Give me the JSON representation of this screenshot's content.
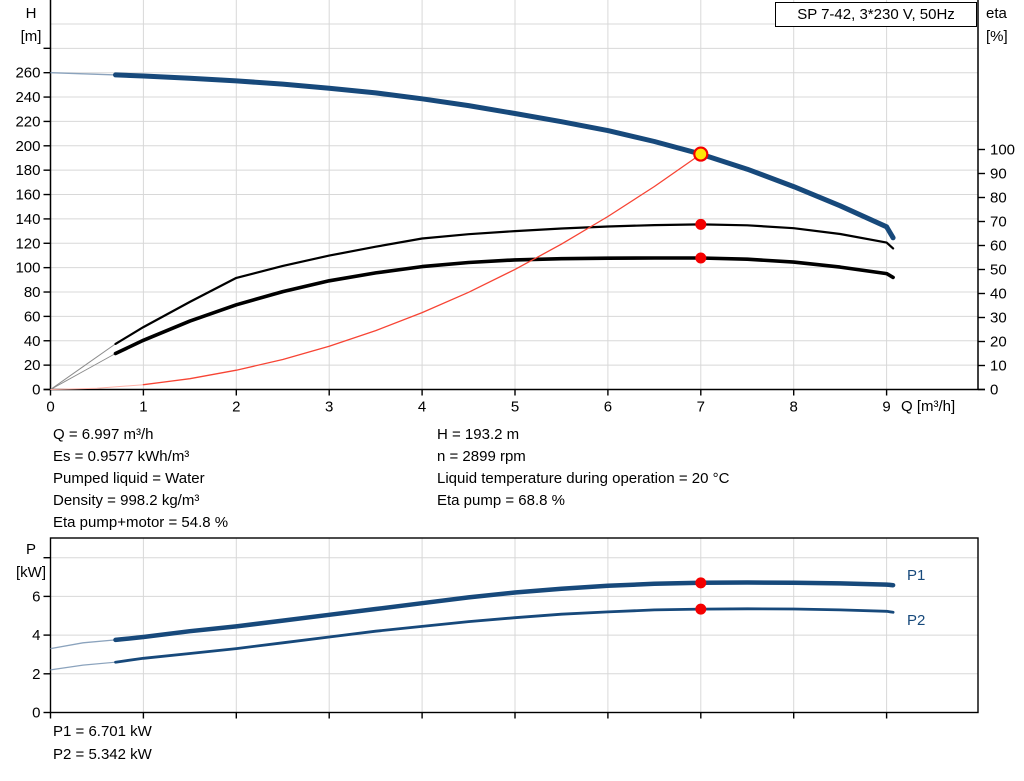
{
  "axis_labels": {
    "h_line1": "H",
    "h_line2": "[m]",
    "eta_line1": "eta",
    "eta_line2": "[%]",
    "p_line1": "P",
    "p_line2": "[kW]"
  },
  "annotations": {
    "left": [
      "Q = 6.997 m³/h",
      "Es = 0.9577 kWh/m³",
      "Pumped liquid = Water",
      "Density = 998.2 kg/m³",
      "Eta pump+motor = 54.8 %"
    ],
    "right": [
      "H = 193.2 m",
      "n = 2899 rpm",
      "Liquid temperature during operation = 20 °C",
      "Eta pump = 68.8 %"
    ],
    "power": [
      "P1 = 6.701 kW",
      "P2 = 5.342 kW"
    ]
  },
  "colors": {
    "curve_blue": "#17497b",
    "curve_blue_thin": "#8ba3bd",
    "curve_black": "#000000",
    "curve_black_thin": "#8c8c8c",
    "curve_red": "#f74434",
    "curve_red_thin": "#ffb3aa",
    "marker_red": "#f40000",
    "marker_yellow": "#ffe508",
    "grid": "#d8d8d8",
    "axis": "#000000",
    "label_blue": "#17497b"
  },
  "chart_data": [
    {
      "type": "line",
      "id": "qh-eta-chart",
      "title": "SP 7-42, 3*230 V, 50Hz",
      "xlabel": "Q [m³/h]",
      "ylabel_left": "H [m]",
      "ylabel_right": "eta [%]",
      "grid": true,
      "xlim": [
        0,
        9.98
      ],
      "ylim_left": [
        0,
        320
      ],
      "ylim_right": [
        0,
        162
      ],
      "x_ticks": [
        0,
        1,
        2,
        3,
        4,
        5,
        6,
        7,
        8,
        9
      ],
      "y_left_ticks": [
        0,
        20,
        40,
        60,
        80,
        100,
        120,
        140,
        160,
        180,
        200,
        220,
        240,
        260
      ],
      "y_left_unlabeled_ticks": [
        280
      ],
      "y_left_grid": [
        20,
        40,
        60,
        80,
        100,
        120,
        140,
        160,
        180,
        200,
        220,
        240,
        260,
        280,
        300
      ],
      "y_right_ticks": [
        0,
        10,
        20,
        30,
        40,
        50,
        60,
        70,
        80,
        90,
        100
      ],
      "series": [
        {
          "name": "eta-pump-curve",
          "axis": "right",
          "color": "#000000",
          "width": 2.2,
          "thin_until": 0.7,
          "thin_color": "#8c8c8c",
          "thin_width": 1,
          "points": [
            [
              0,
              0
            ],
            [
              0.35,
              9.5
            ],
            [
              0.7,
              19
            ],
            [
              1,
              26
            ],
            [
              1.5,
              36.5
            ],
            [
              2,
              46.5
            ],
            [
              2.5,
              51.5
            ],
            [
              3,
              55.8
            ],
            [
              3.5,
              59.5
            ],
            [
              4,
              62.9
            ],
            [
              4.5,
              64.7
            ],
            [
              5,
              66
            ],
            [
              5.5,
              67.1
            ],
            [
              6,
              67.9
            ],
            [
              6.5,
              68.5
            ],
            [
              7,
              68.8
            ],
            [
              7.5,
              68.4
            ],
            [
              8,
              67.2
            ],
            [
              8.5,
              64.8
            ],
            [
              9,
              61.2
            ],
            [
              9.07,
              58.8
            ]
          ]
        },
        {
          "name": "eta-pump-motor-curve",
          "axis": "right",
          "color": "#000000",
          "width": 3.6,
          "thin_until": 0.7,
          "thin_color": "#8c8c8c",
          "thin_width": 1,
          "points": [
            [
              0,
              0
            ],
            [
              0.35,
              7.5
            ],
            [
              0.7,
              15
            ],
            [
              1,
              20.5
            ],
            [
              1.5,
              28.5
            ],
            [
              2,
              35.3
            ],
            [
              2.5,
              40.8
            ],
            [
              3,
              45.3
            ],
            [
              3.5,
              48.6
            ],
            [
              4,
              51.2
            ],
            [
              4.5,
              52.9
            ],
            [
              5,
              54
            ],
            [
              5.5,
              54.5
            ],
            [
              6,
              54.7
            ],
            [
              6.5,
              54.8
            ],
            [
              7,
              54.8
            ],
            [
              7.5,
              54.3
            ],
            [
              8,
              53.1
            ],
            [
              8.5,
              51
            ],
            [
              9,
              48.3
            ],
            [
              9.07,
              46.7
            ]
          ]
        },
        {
          "name": "system-curve",
          "axis": "left",
          "color": "#f74434",
          "width": 1.3,
          "thin_until": 1,
          "thin_color": "#ffb3aa",
          "thin_width": 1,
          "points": [
            [
              0,
              0
            ],
            [
              0.5,
              1
            ],
            [
              1,
              3.9
            ],
            [
              1.5,
              8.9
            ],
            [
              2,
              15.8
            ],
            [
              2.5,
              24.6
            ],
            [
              3,
              35.5
            ],
            [
              3.5,
              48.3
            ],
            [
              4,
              63.1
            ],
            [
              4.5,
              79.8
            ],
            [
              5,
              98.6
            ],
            [
              5.5,
              119.3
            ],
            [
              6,
              142
            ],
            [
              6.5,
              166.6
            ],
            [
              7,
              193.2
            ]
          ]
        },
        {
          "name": "head-curve",
          "axis": "left",
          "color": "#17497b",
          "width": 5,
          "thin_until": 0.7,
          "thin_color": "#8ba3bd",
          "thin_width": 1.4,
          "points": [
            [
              0,
              260
            ],
            [
              0.35,
              259.1
            ],
            [
              0.7,
              258.2
            ],
            [
              1,
              257.3
            ],
            [
              1.5,
              255.5
            ],
            [
              2,
              253.3
            ],
            [
              2.5,
              250.6
            ],
            [
              3,
              247.3
            ],
            [
              3.5,
              243.4
            ],
            [
              4,
              238.6
            ],
            [
              4.5,
              233
            ],
            [
              5,
              226.5
            ],
            [
              5.5,
              219.8
            ],
            [
              6,
              212.5
            ],
            [
              6.5,
              203.5
            ],
            [
              7,
              193.2
            ],
            [
              7.5,
              180.8
            ],
            [
              8,
              166.5
            ],
            [
              8.5,
              150.8
            ],
            [
              9,
              133.5
            ],
            [
              9.07,
              124.5
            ]
          ]
        }
      ],
      "markers": [
        {
          "name": "duty-point-qh",
          "q": 7,
          "value": 193.2,
          "axis": "left",
          "r": 6.5,
          "fill": "#ffe508",
          "stroke": "#f40000",
          "stroke_width": 2.2
        },
        {
          "name": "duty-point-eta-pump",
          "q": 7,
          "value": 68.8,
          "axis": "right",
          "r": 5.5,
          "fill": "#f40000"
        },
        {
          "name": "duty-point-eta-pump-motor",
          "q": 7,
          "value": 54.8,
          "axis": "right",
          "r": 5.5,
          "fill": "#f40000"
        }
      ]
    },
    {
      "type": "line",
      "id": "power-chart",
      "ylabel": "P [kW]",
      "grid": true,
      "xlim": [
        0,
        9.98
      ],
      "ylim": [
        0,
        9
      ],
      "x_ticks": [
        0,
        1,
        2,
        3,
        4,
        5,
        6,
        7,
        8,
        9
      ],
      "y_ticks": [
        0,
        2,
        4,
        6
      ],
      "y_unlabeled_ticks": [
        8
      ],
      "y_grid": [
        2,
        4,
        6,
        8
      ],
      "series": [
        {
          "name": "p1-curve",
          "label": "P1",
          "axis": "left",
          "color": "#17497b",
          "width": 4.5,
          "thin_until": 0.7,
          "thin_color": "#8ba3bd",
          "thin_width": 1.3,
          "points": [
            [
              0,
              3.3
            ],
            [
              0.35,
              3.6
            ],
            [
              0.7,
              3.75
            ],
            [
              1,
              3.9
            ],
            [
              1.5,
              4.2
            ],
            [
              2,
              4.45
            ],
            [
              2.5,
              4.75
            ],
            [
              3,
              5.05
            ],
            [
              3.5,
              5.35
            ],
            [
              4,
              5.65
            ],
            [
              4.5,
              5.95
            ],
            [
              5,
              6.2
            ],
            [
              5.5,
              6.4
            ],
            [
              6,
              6.55
            ],
            [
              6.5,
              6.65
            ],
            [
              7,
              6.701
            ],
            [
              7.5,
              6.72
            ],
            [
              8,
              6.71
            ],
            [
              8.5,
              6.67
            ],
            [
              9,
              6.61
            ],
            [
              9.07,
              6.58
            ]
          ]
        },
        {
          "name": "p2-curve",
          "label": "P2",
          "axis": "left",
          "color": "#17497b",
          "width": 2.8,
          "thin_until": 0.7,
          "thin_color": "#8ba3bd",
          "thin_width": 1.2,
          "points": [
            [
              0,
              2.2
            ],
            [
              0.35,
              2.45
            ],
            [
              0.7,
              2.6
            ],
            [
              1,
              2.8
            ],
            [
              1.5,
              3.05
            ],
            [
              2,
              3.3
            ],
            [
              2.5,
              3.6
            ],
            [
              3,
              3.9
            ],
            [
              3.5,
              4.2
            ],
            [
              4,
              4.45
            ],
            [
              4.5,
              4.7
            ],
            [
              5,
              4.9
            ],
            [
              5.5,
              5.08
            ],
            [
              6,
              5.2
            ],
            [
              6.5,
              5.3
            ],
            [
              7,
              5.342
            ],
            [
              7.5,
              5.36
            ],
            [
              8,
              5.35
            ],
            [
              8.5,
              5.3
            ],
            [
              9,
              5.23
            ],
            [
              9.07,
              5.18
            ]
          ]
        }
      ],
      "markers": [
        {
          "name": "duty-point-p1",
          "q": 7,
          "value": 6.701,
          "r": 5.5,
          "fill": "#f40000"
        },
        {
          "name": "duty-point-p2",
          "q": 7,
          "value": 5.342,
          "r": 5.5,
          "fill": "#f40000"
        }
      ]
    }
  ]
}
